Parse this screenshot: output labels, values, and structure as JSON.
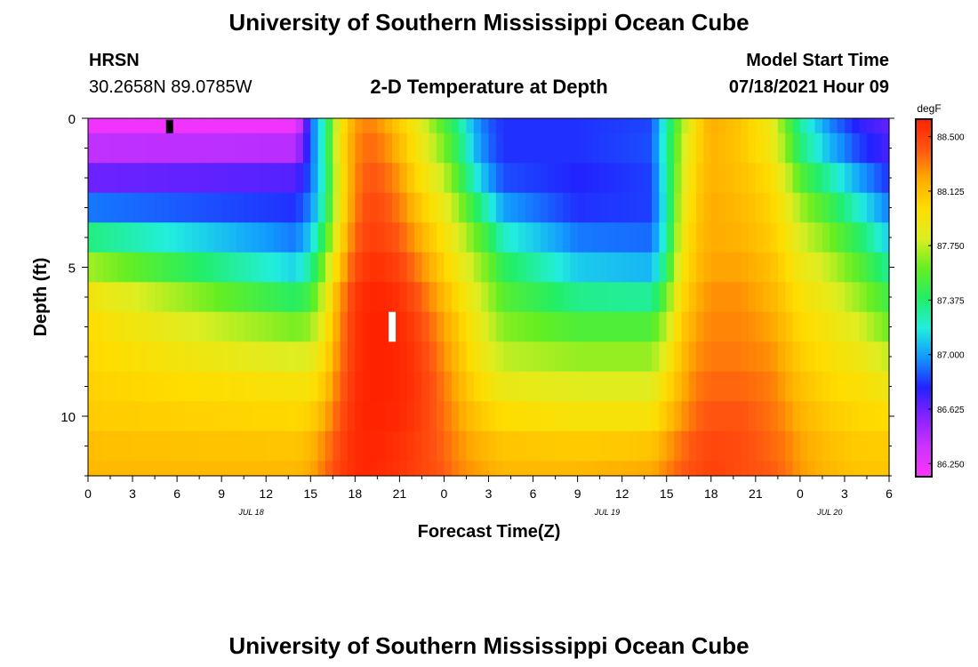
{
  "header": {
    "title": "University of Southern Mississippi Ocean Cube",
    "station": "HRSN",
    "coords": "30.2658N  89.0785W",
    "plot_title": "2-D Temperature at Depth",
    "model_start_label": "Model Start Time",
    "model_start_value": "07/18/2021 Hour 09"
  },
  "footer": {
    "title": "University of Southern Mississippi Ocean Cube"
  },
  "chart_data": {
    "type": "heatmap",
    "title": "2-D Temperature at Depth",
    "xlabel": "Forecast Time(Z)",
    "ylabel": "Depth (ft)",
    "x_tick_labels": [
      "0",
      "3",
      "6",
      "9",
      "12",
      "15",
      "18",
      "21",
      "0",
      "3",
      "6",
      "9",
      "12",
      "15",
      "18",
      "21",
      "0",
      "3",
      "6"
    ],
    "date_labels": [
      {
        "label": "JUL 18",
        "hour": 11
      },
      {
        "label": "JUL 19",
        "hour": 35
      },
      {
        "label": "JUL 20",
        "hour": 50
      }
    ],
    "x_range_hours": [
      0,
      54
    ],
    "y_tick_labels": [
      "0",
      "5",
      "10"
    ],
    "y_ticks": [
      0,
      5,
      10
    ],
    "ylim": [
      0,
      12
    ],
    "colorbar": {
      "unit": "degF",
      "tick_labels": [
        "88.500",
        "88.125",
        "87.750",
        "87.375",
        "87.000",
        "86.625",
        "86.250"
      ],
      "ticks": [
        88.5,
        88.125,
        87.75,
        87.375,
        87.0,
        86.625,
        86.25
      ],
      "range": [
        86.16,
        88.62
      ],
      "stops": [
        "#ff33ff",
        "#cc33ff",
        "#8822ff",
        "#2222ff",
        "#1199ff",
        "#22eedd",
        "#22ee66",
        "#66ee22",
        "#ddee22",
        "#ffdd00",
        "#ffaa00",
        "#ff5511",
        "#ff2200"
      ]
    },
    "depth_rows": [
      0,
      0.5,
      1.5,
      2.5,
      3.5,
      4.5,
      5.5,
      6.5,
      7.5,
      8.5,
      9.5,
      10.5,
      11.5,
      12
    ],
    "time_cols_hours": [
      0,
      14,
      15,
      16,
      17,
      18,
      19,
      20,
      21,
      22,
      23,
      24,
      25,
      26,
      27,
      28,
      33,
      38,
      39,
      40,
      41,
      42,
      44,
      46,
      47,
      48,
      50,
      52,
      54
    ],
    "values_degF": [
      [
        86.18,
        86.18,
        86.85,
        87.28,
        87.9,
        88.22,
        88.3,
        88.18,
        88.05,
        87.9,
        87.7,
        87.5,
        87.3,
        87.0,
        86.85,
        86.8,
        86.8,
        86.82,
        87.25,
        87.65,
        88.0,
        88.2,
        88.1,
        87.9,
        87.6,
        87.3,
        86.95,
        86.75,
        86.65
      ],
      [
        86.25,
        86.25,
        86.85,
        87.35,
        87.95,
        88.25,
        88.35,
        88.25,
        88.1,
        87.95,
        87.75,
        87.55,
        87.35,
        87.05,
        86.9,
        86.8,
        86.8,
        86.85,
        87.3,
        87.7,
        88.0,
        88.2,
        88.1,
        87.9,
        87.6,
        87.3,
        86.95,
        86.75,
        86.65
      ],
      [
        86.55,
        86.6,
        86.85,
        87.3,
        87.95,
        88.3,
        88.4,
        88.35,
        88.2,
        88.0,
        87.85,
        87.7,
        87.45,
        87.1,
        86.9,
        86.8,
        86.8,
        86.85,
        87.3,
        87.75,
        88.05,
        88.15,
        88.1,
        87.95,
        87.75,
        87.45,
        87.15,
        86.9,
        86.75
      ],
      [
        86.7,
        86.75,
        86.9,
        87.3,
        87.9,
        88.3,
        88.45,
        88.4,
        88.3,
        88.1,
        87.95,
        87.8,
        87.6,
        87.35,
        87.1,
        86.9,
        86.75,
        86.8,
        87.25,
        87.8,
        88.05,
        88.2,
        88.15,
        88.05,
        87.85,
        87.65,
        87.4,
        87.1,
        86.85
      ],
      [
        87.15,
        86.85,
        87.0,
        87.4,
        87.95,
        88.35,
        88.5,
        88.45,
        88.35,
        88.2,
        88.05,
        87.95,
        87.75,
        87.55,
        87.35,
        87.1,
        86.85,
        86.85,
        87.25,
        87.85,
        88.1,
        88.2,
        88.15,
        88.05,
        87.95,
        87.75,
        87.55,
        87.3,
        87.0
      ],
      [
        87.55,
        87.0,
        87.2,
        87.6,
        88.05,
        88.4,
        88.52,
        88.5,
        88.45,
        88.3,
        88.15,
        88.0,
        87.85,
        87.7,
        87.55,
        87.35,
        87.0,
        86.95,
        87.3,
        87.9,
        88.1,
        88.2,
        88.2,
        88.1,
        88.0,
        87.85,
        87.7,
        87.5,
        87.2
      ],
      [
        87.85,
        87.25,
        87.4,
        87.75,
        88.2,
        88.5,
        88.6,
        88.58,
        88.52,
        88.4,
        88.25,
        88.1,
        87.95,
        87.8,
        87.65,
        87.5,
        87.2,
        87.15,
        87.5,
        87.95,
        88.15,
        88.25,
        88.25,
        88.15,
        88.05,
        87.95,
        87.8,
        87.6,
        87.4
      ],
      [
        88.0,
        87.55,
        87.6,
        87.9,
        88.3,
        88.55,
        88.62,
        88.62,
        88.58,
        88.5,
        88.35,
        88.2,
        88.05,
        87.9,
        87.75,
        87.6,
        87.45,
        87.45,
        87.7,
        88.05,
        88.2,
        88.3,
        88.3,
        88.2,
        88.1,
        88.0,
        87.9,
        87.75,
        87.55
      ],
      [
        88.0,
        87.7,
        87.75,
        87.95,
        88.3,
        88.55,
        88.62,
        88.62,
        88.6,
        88.52,
        88.4,
        88.25,
        88.1,
        87.95,
        87.8,
        87.7,
        87.6,
        87.6,
        87.8,
        88.1,
        88.25,
        88.3,
        88.3,
        88.25,
        88.15,
        88.05,
        87.95,
        87.85,
        87.65
      ],
      [
        88.05,
        87.9,
        87.9,
        88.05,
        88.35,
        88.55,
        88.62,
        88.62,
        88.6,
        88.55,
        88.45,
        88.3,
        88.15,
        88.0,
        87.9,
        87.8,
        87.75,
        87.75,
        87.95,
        88.15,
        88.3,
        88.35,
        88.35,
        88.3,
        88.2,
        88.1,
        88.0,
        87.95,
        87.85
      ],
      [
        88.05,
        88.0,
        88.0,
        88.15,
        88.4,
        88.58,
        88.62,
        88.62,
        88.6,
        88.55,
        88.45,
        88.35,
        88.2,
        88.1,
        88.0,
        87.95,
        87.9,
        87.9,
        88.05,
        88.2,
        88.35,
        88.4,
        88.4,
        88.35,
        88.25,
        88.15,
        88.05,
        88.0,
        87.95
      ],
      [
        88.1,
        88.05,
        88.1,
        88.25,
        88.45,
        88.58,
        88.62,
        88.6,
        88.58,
        88.52,
        88.45,
        88.35,
        88.25,
        88.15,
        88.1,
        88.05,
        88.0,
        88.0,
        88.15,
        88.3,
        88.4,
        88.45,
        88.45,
        88.35,
        88.3,
        88.2,
        88.1,
        88.05,
        88.05
      ],
      [
        88.15,
        88.15,
        88.2,
        88.35,
        88.5,
        88.58,
        88.6,
        88.58,
        88.55,
        88.5,
        88.45,
        88.4,
        88.3,
        88.25,
        88.2,
        88.15,
        88.15,
        88.2,
        88.3,
        88.4,
        88.45,
        88.5,
        88.45,
        88.4,
        88.35,
        88.25,
        88.15,
        88.1,
        88.1
      ],
      [
        88.15,
        88.15,
        88.2,
        88.35,
        88.5,
        88.58,
        88.6,
        88.58,
        88.55,
        88.5,
        88.45,
        88.4,
        88.3,
        88.25,
        88.2,
        88.15,
        88.15,
        88.2,
        88.3,
        88.4,
        88.45,
        88.5,
        88.45,
        88.4,
        88.35,
        88.25,
        88.15,
        88.1,
        88.1
      ]
    ],
    "markers": [
      {
        "name": "minimum",
        "hour": 5.5,
        "depth_from": 0.05,
        "depth_to": 0.5,
        "color": "#000000"
      },
      {
        "name": "maximum",
        "hour": 20.5,
        "depth_from": 6.5,
        "depth_to": 7.5,
        "color": "#ffffff"
      }
    ]
  }
}
